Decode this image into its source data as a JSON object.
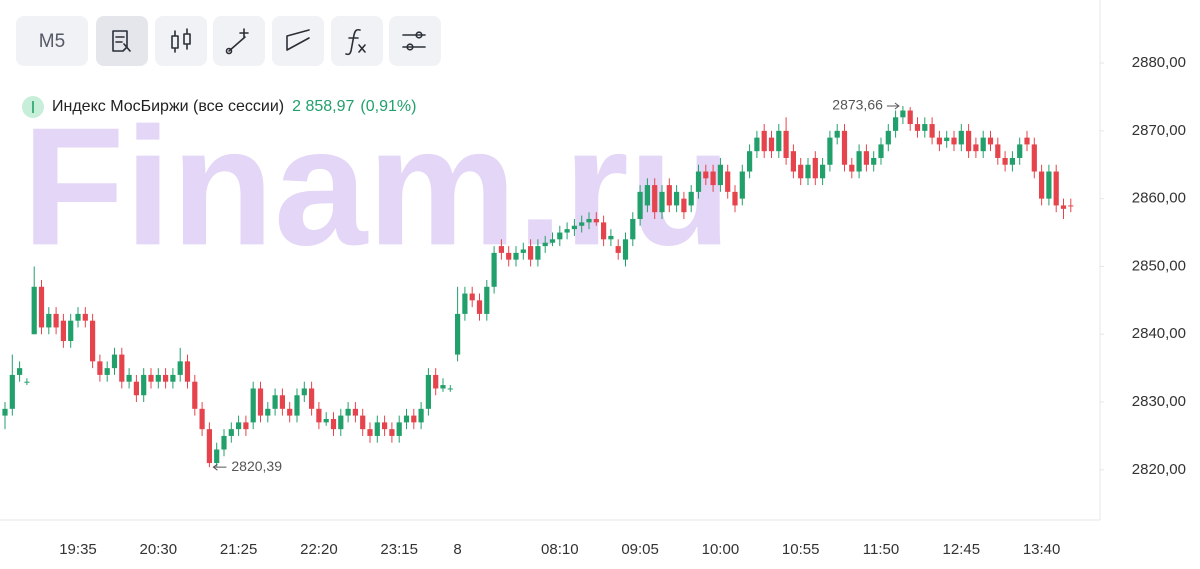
{
  "toolbar": {
    "interval": "М5"
  },
  "chart_data": {
    "type": "candlestick",
    "watermark": "Finam.ru",
    "series_name": "Индекс МосБиржи (все сессии)",
    "last_value": {
      "value": 2858.97,
      "label": "2 858,97"
    },
    "change": {
      "value": 0.91,
      "label": "(0,91%)"
    },
    "up_color": "#22a06b",
    "down_color": "#e5444d",
    "ylim": [
      2812.6,
      2889.3
    ],
    "yticks": [
      {
        "value": 2820,
        "label": "2820,00"
      },
      {
        "value": 2830,
        "label": "2830,00"
      },
      {
        "value": 2840,
        "label": "2840,00"
      },
      {
        "value": 2850,
        "label": "2850,00"
      },
      {
        "value": 2860,
        "label": "2860,00"
      },
      {
        "value": 2870,
        "label": "2870,00"
      },
      {
        "value": 2880,
        "label": "2880,00"
      }
    ],
    "grid": false,
    "annotations": [
      {
        "value": 2873.66,
        "label": "2873,66"
      },
      {
        "value": 2820.39,
        "label": "2820,39"
      }
    ],
    "categories": [
      null,
      null,
      null,
      null,
      null,
      null,
      null,
      null,
      null,
      null,
      "19:35",
      null,
      null,
      null,
      null,
      null,
      null,
      null,
      null,
      null,
      null,
      "20:30",
      null,
      null,
      null,
      null,
      null,
      null,
      null,
      null,
      null,
      null,
      "21:25",
      null,
      null,
      null,
      null,
      null,
      null,
      null,
      null,
      null,
      null,
      "22:20",
      null,
      null,
      null,
      null,
      null,
      null,
      null,
      null,
      null,
      null,
      "23:15",
      null,
      null,
      null,
      null,
      null,
      null,
      null,
      "8",
      null,
      null,
      null,
      null,
      null,
      null,
      null,
      null,
      null,
      null,
      null,
      null,
      null,
      "08:10",
      null,
      null,
      null,
      null,
      null,
      null,
      null,
      null,
      null,
      null,
      "09:05",
      null,
      null,
      null,
      null,
      null,
      null,
      null,
      null,
      null,
      null,
      "10:00",
      null,
      null,
      null,
      null,
      null,
      null,
      null,
      null,
      null,
      null,
      "10:55",
      null,
      null,
      null,
      null,
      null,
      null,
      null,
      null,
      null,
      null,
      "11:50",
      null,
      null,
      null,
      null,
      null,
      null,
      null,
      null,
      null,
      null,
      "12:45",
      null,
      null,
      null,
      null,
      null,
      null,
      null,
      null,
      null,
      null,
      "13:40",
      null,
      null,
      null,
      null
    ],
    "open": [
      2828,
      2829,
      2834,
      2833,
      2840,
      2847,
      2841,
      2843,
      2842,
      2839,
      2842,
      2843,
      2842,
      2836,
      2834,
      2835,
      2837,
      2833,
      2833,
      2831,
      2834,
      2833,
      2834,
      2833,
      2834,
      2836,
      2833,
      2829,
      2826,
      2821,
      2823,
      2825,
      2826,
      2827,
      2827,
      2832,
      2828,
      2829,
      2831,
      2829,
      2828,
      2831,
      2832,
      2829,
      2827,
      2827.5,
      2826,
      2828,
      2829,
      2828,
      2826,
      2825,
      2827,
      2826,
      2825,
      2827,
      2828,
      2827,
      2829,
      2834,
      2832,
      2832,
      2837,
      2843,
      2846,
      2845,
      2843,
      2847,
      2853,
      2852,
      2851,
      2852,
      2853,
      2851,
      2853,
      2853.5,
      2854,
      2855,
      2855.5,
      2856,
      2856.5,
      2857,
      2856.5,
      2854,
      2853,
      2851,
      2854,
      2857,
      2859,
      2862,
      2858,
      2862,
      2859,
      2860,
      2859,
      2861,
      2864,
      2864,
      2862,
      2864,
      2861,
      2860,
      2864,
      2867,
      2870,
      2869,
      2867,
      2870,
      2867,
      2865,
      2863,
      2866,
      2863,
      2865,
      2869,
      2870,
      2865,
      2864,
      2867,
      2865,
      2866,
      2868,
      2870,
      2872,
      2873,
      2871,
      2870,
      2871,
      2869,
      2868.5,
      2869,
      2868,
      2870,
      2868,
      2867,
      2869,
      2868,
      2866,
      2865,
      2866,
      2869,
      2868,
      2864,
      2860,
      2864,
      2859,
      2859
    ],
    "high": [
      2830,
      2837,
      2836,
      2833.5,
      2850,
      2848,
      2844,
      2844,
      2843,
      2843,
      2844,
      2844,
      2843,
      2837,
      2836,
      2838,
      2838,
      2835,
      2834,
      2835,
      2835,
      2835,
      2835,
      2835,
      2838,
      2837,
      2834,
      2830,
      2827,
      2824,
      2826,
      2827,
      2828,
      2828,
      2833,
      2833,
      2830,
      2832,
      2832,
      2830,
      2832,
      2833,
      2833,
      2830,
      2828.5,
      2828.5,
      2829,
      2830,
      2830,
      2829,
      2827,
      2828,
      2828,
      2827,
      2828,
      2829,
      2829,
      2830,
      2835,
      2835,
      2833.5,
      2832.5,
      2847,
      2847,
      2847,
      2846,
      2848,
      2853,
      2854,
      2853,
      2853,
      2853.5,
      2854,
      2854,
      2854.5,
      2855,
      2856,
      2856.5,
      2857,
      2857.5,
      2858,
      2858,
      2857.5,
      2855.5,
      2854,
      2855,
      2858,
      2862,
      2863,
      2863,
      2862,
      2863,
      2862,
      2861,
      2862,
      2865,
      2865,
      2865,
      2866,
      2865,
      2862,
      2865,
      2868,
      2870,
      2871,
      2870,
      2871,
      2872,
      2868,
      2866,
      2866,
      2867,
      2866,
      2870,
      2871,
      2871,
      2866,
      2868,
      2868,
      2867,
      2869,
      2871,
      2873,
      2873.66,
      2873.5,
      2872,
      2872,
      2872,
      2870,
      2870,
      2870,
      2871,
      2871,
      2869,
      2870,
      2870,
      2869,
      2867,
      2867,
      2869,
      2870,
      2869,
      2865,
      2865,
      2865,
      2860,
      2860
    ],
    "low": [
      2826,
      2828,
      2833,
      2832.5,
      2840,
      2840,
      2840,
      2840,
      2838,
      2838,
      2841,
      2841,
      2835,
      2833,
      2833,
      2834,
      2832,
      2832,
      2830,
      2830,
      2832,
      2832,
      2832,
      2832,
      2833,
      2832,
      2828,
      2825,
      2820.39,
      2820.5,
      2822,
      2824,
      2825,
      2825,
      2826,
      2827,
      2827,
      2828,
      2828,
      2827,
      2827,
      2830,
      2828,
      2826,
      2826.5,
      2825,
      2825,
      2827,
      2827,
      2825,
      2824,
      2824,
      2825,
      2824,
      2824,
      2826,
      2826,
      2826,
      2828,
      2831,
      2831.5,
      2831.5,
      2836,
      2842,
      2844,
      2842,
      2842,
      2846,
      2851,
      2850,
      2850,
      2851,
      2850,
      2850,
      2852,
      2853,
      2853,
      2854,
      2854.5,
      2855,
      2855.5,
      2856,
      2853,
      2853,
      2851,
      2850,
      2853,
      2856,
      2858,
      2857,
      2857,
      2858,
      2858,
      2857,
      2858,
      2860,
      2862,
      2861,
      2861,
      2860,
      2858,
      2859,
      2863,
      2866,
      2866,
      2866,
      2866,
      2865,
      2863,
      2862,
      2862,
      2862,
      2862,
      2864,
      2868,
      2864,
      2863,
      2863,
      2864,
      2864,
      2865,
      2867,
      2869,
      2871,
      2870,
      2869,
      2869,
      2868,
      2867,
      2867.5,
      2867,
      2867,
      2866,
      2866,
      2866,
      2867,
      2865,
      2864,
      2864,
      2865,
      2867,
      2863,
      2859,
      2859,
      2858,
      2857,
      2858
    ],
    "close": [
      2829,
      2834,
      2835,
      2833,
      2847,
      2841,
      2843,
      2841,
      2839,
      2842,
      2843,
      2842,
      2836,
      2834,
      2835,
      2837,
      2833,
      2834,
      2831,
      2834,
      2833,
      2834,
      2833,
      2834,
      2836,
      2833,
      2829,
      2826,
      2821,
      2823,
      2825,
      2826,
      2827,
      2826,
      2832,
      2828,
      2829,
      2831,
      2829,
      2828,
      2831,
      2832,
      2829,
      2827,
      2827.5,
      2826,
      2828,
      2829,
      2828,
      2826,
      2825,
      2827,
      2826,
      2825,
      2827,
      2828,
      2827,
      2829,
      2834,
      2832,
      2832.5,
      2832,
      2843,
      2846,
      2845,
      2843,
      2847,
      2852,
      2852,
      2851,
      2852,
      2852.5,
      2851,
      2853,
      2853.5,
      2854,
      2855,
      2855.5,
      2856,
      2856.5,
      2857,
      2856.5,
      2854,
      2854.5,
      2852,
      2854,
      2857,
      2861,
      2862,
      2858,
      2861,
      2859,
      2861,
      2858,
      2861,
      2864,
      2863,
      2862,
      2865,
      2861,
      2859,
      2864,
      2867,
      2869,
      2867,
      2867,
      2870,
      2866,
      2864,
      2863,
      2865,
      2863,
      2865,
      2869,
      2870,
      2865,
      2864,
      2867,
      2865,
      2866,
      2868,
      2870,
      2872,
      2873,
      2871,
      2870,
      2871,
      2869,
      2868,
      2869,
      2868,
      2870,
      2867,
      2867,
      2869,
      2868,
      2866,
      2865,
      2866,
      2868,
      2868,
      2864,
      2860,
      2864,
      2859,
      2858.5,
      2858.97
    ]
  }
}
